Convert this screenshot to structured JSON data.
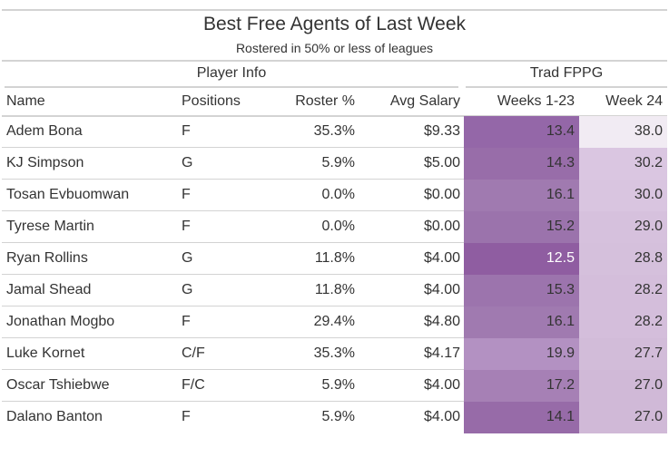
{
  "table": {
    "title": "Best Free Agents of Last Week",
    "subtitle": "Rostered in 50% or less of leagues",
    "spanners": {
      "player_info": "Player Info",
      "trad_fppg": "Trad FPPG"
    },
    "columns": {
      "name": "Name",
      "positions": "Positions",
      "roster": "Roster %",
      "salary": "Avg Salary",
      "weeks_1_23": "Weeks 1-23",
      "week_24": "Week 24"
    },
    "rows": [
      {
        "name": "Adem Bona",
        "positions": "F",
        "roster": "35.3%",
        "salary": "$9.33",
        "weeks_1_23": "13.4",
        "week_24": "38.0",
        "w1_color": "#9467a8",
        "w1_text": "#333333",
        "w24_color": "#f1ebf3"
      },
      {
        "name": "KJ Simpson",
        "positions": "G",
        "roster": "5.9%",
        "salary": "$5.00",
        "weeks_1_23": "14.3",
        "week_24": "30.2",
        "w1_color": "#986da9",
        "w1_text": "#333333",
        "w24_color": "#dac6e1"
      },
      {
        "name": "Tosan Evbuomwan",
        "positions": "F",
        "roster": "0.0%",
        "salary": "$0.00",
        "weeks_1_23": "16.1",
        "week_24": "30.0",
        "w1_color": "#a07ab0",
        "w1_text": "#333333",
        "w24_color": "#d9c5e0"
      },
      {
        "name": "Tyrese Martin",
        "positions": "F",
        "roster": "0.0%",
        "salary": "$0.00",
        "weeks_1_23": "15.2",
        "week_24": "29.0",
        "w1_color": "#9b73ac",
        "w1_text": "#333333",
        "w24_color": "#d6c1dd"
      },
      {
        "name": "Ryan Rollins",
        "positions": "G",
        "roster": "11.8%",
        "salary": "$4.00",
        "weeks_1_23": "12.5",
        "week_24": "28.8",
        "w1_color": "#8f5da1",
        "w1_text": "#ffffff",
        "w24_color": "#d5c0dc"
      },
      {
        "name": "Jamal Shead",
        "positions": "G",
        "roster": "11.8%",
        "salary": "$4.00",
        "weeks_1_23": "15.3",
        "week_24": "28.2",
        "w1_color": "#9c74ad",
        "w1_text": "#333333",
        "w24_color": "#d4bedb"
      },
      {
        "name": "Jonathan Mogbo",
        "positions": "F",
        "roster": "29.4%",
        "salary": "$4.80",
        "weeks_1_23": "16.1",
        "week_24": "28.2",
        "w1_color": "#a07ab0",
        "w1_text": "#333333",
        "w24_color": "#d4bedb"
      },
      {
        "name": "Luke Kornet",
        "positions": "C/F",
        "roster": "35.3%",
        "salary": "$4.17",
        "weeks_1_23": "19.9",
        "week_24": "27.7",
        "w1_color": "#b391c2",
        "w1_text": "#333333",
        "w24_color": "#d2bcd9"
      },
      {
        "name": "Oscar Tshiebwe",
        "positions": "F/C",
        "roster": "5.9%",
        "salary": "$4.00",
        "weeks_1_23": "17.2",
        "week_24": "27.0",
        "w1_color": "#a680b5",
        "w1_text": "#333333",
        "w24_color": "#d0b9d7"
      },
      {
        "name": "Dalano Banton",
        "positions": "F",
        "roster": "5.9%",
        "salary": "$4.00",
        "weeks_1_23": "14.1",
        "week_24": "27.0",
        "w1_color": "#976ba8",
        "w1_text": "#333333",
        "w24_color": "#d0b9d7"
      }
    ]
  }
}
